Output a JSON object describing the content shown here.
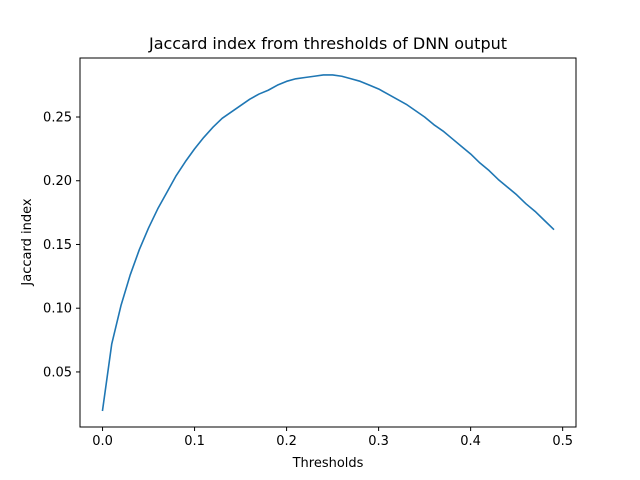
{
  "chart_data": {
    "type": "line",
    "title": "Jaccard index from thresholds of DNN output",
    "xlabel": "Thresholds",
    "ylabel": "Jaccard index",
    "xlim": [
      -0.0245,
      0.5145
    ],
    "ylim": [
      0.0068,
      0.2963
    ],
    "xticks": [
      0.0,
      0.1,
      0.2,
      0.3,
      0.4,
      0.5
    ],
    "xtick_labels": [
      "0.0",
      "0.1",
      "0.2",
      "0.3",
      "0.4",
      "0.5"
    ],
    "yticks": [
      0.05,
      0.1,
      0.15,
      0.2,
      0.25
    ],
    "ytick_labels": [
      "0.05",
      "0.10",
      "0.15",
      "0.20",
      "0.25"
    ],
    "grid": false,
    "colors": {
      "line": "#1f77b4"
    },
    "series": [
      {
        "x": [
          0.0,
          0.01,
          0.02,
          0.03,
          0.04,
          0.05,
          0.06,
          0.07,
          0.08,
          0.09,
          0.1,
          0.11,
          0.12,
          0.13,
          0.14,
          0.15,
          0.16,
          0.17,
          0.18,
          0.19,
          0.2,
          0.21,
          0.22,
          0.23,
          0.24,
          0.25,
          0.26,
          0.27,
          0.28,
          0.29,
          0.3,
          0.31,
          0.32,
          0.33,
          0.34,
          0.35,
          0.36,
          0.37,
          0.38,
          0.39,
          0.4,
          0.41,
          0.42,
          0.43,
          0.44,
          0.45,
          0.46,
          0.47,
          0.48,
          0.49
        ],
        "values": [
          0.02,
          0.072,
          0.102,
          0.126,
          0.146,
          0.163,
          0.178,
          0.191,
          0.204,
          0.215,
          0.225,
          0.234,
          0.242,
          0.249,
          0.254,
          0.259,
          0.264,
          0.268,
          0.271,
          0.275,
          0.278,
          0.28,
          0.281,
          0.282,
          0.283,
          0.283,
          0.282,
          0.28,
          0.278,
          0.275,
          0.272,
          0.268,
          0.264,
          0.26,
          0.255,
          0.25,
          0.244,
          0.239,
          0.233,
          0.227,
          0.221,
          0.214,
          0.208,
          0.201,
          0.195,
          0.189,
          0.182,
          0.176,
          0.169,
          0.162
        ]
      }
    ]
  }
}
